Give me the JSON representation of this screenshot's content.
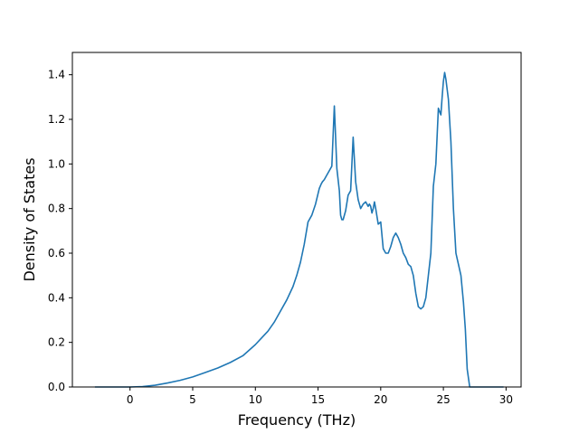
{
  "chart_data": {
    "type": "line",
    "title": "",
    "xlabel": "Frequency (THz)",
    "ylabel": "Density of States",
    "xlim": [
      -4.6,
      31.2
    ],
    "ylim": [
      0.0,
      1.5
    ],
    "xticks": [
      0,
      5,
      10,
      15,
      20,
      25,
      30
    ],
    "yticks": [
      0.0,
      0.2,
      0.4,
      0.6,
      0.8,
      1.0,
      1.2,
      1.4
    ],
    "grid": false,
    "legend": "none",
    "series": [
      {
        "color": "#1f77b4",
        "x": [
          -2.8,
          -1.0,
          0.0,
          1.0,
          2.0,
          3.0,
          4.0,
          5.0,
          6.0,
          7.0,
          8.0,
          9.0,
          10.0,
          10.5,
          11.0,
          11.5,
          12.0,
          12.5,
          13.0,
          13.3,
          13.6,
          13.9,
          14.2,
          14.5,
          14.8,
          15.1,
          15.25,
          15.35,
          15.5,
          15.7,
          15.9,
          16.1,
          16.3,
          16.5,
          16.7,
          16.8,
          16.9,
          17.0,
          17.2,
          17.4,
          17.6,
          17.8,
          18.0,
          18.2,
          18.4,
          18.6,
          18.8,
          19.0,
          19.1,
          19.2,
          19.3,
          19.4,
          19.5,
          19.6,
          19.8,
          20.0,
          20.2,
          20.4,
          20.6,
          20.8,
          21.0,
          21.2,
          21.4,
          21.6,
          21.8,
          22.0,
          22.2,
          22.4,
          22.6,
          22.8,
          23.0,
          23.2,
          23.4,
          23.6,
          23.8,
          24.0,
          24.2,
          24.4,
          24.6,
          24.8,
          24.9,
          25.0,
          25.1,
          25.2,
          25.4,
          25.6,
          25.8,
          26.0,
          26.2,
          26.4,
          26.6,
          26.75,
          26.9,
          27.1,
          27.5,
          28.5,
          29.8
        ],
        "y": [
          0.0,
          0.0,
          0.0,
          0.002,
          0.008,
          0.018,
          0.03,
          0.045,
          0.065,
          0.085,
          0.11,
          0.14,
          0.19,
          0.22,
          0.25,
          0.29,
          0.34,
          0.39,
          0.45,
          0.5,
          0.56,
          0.64,
          0.74,
          0.77,
          0.82,
          0.89,
          0.91,
          0.92,
          0.93,
          0.95,
          0.97,
          0.99,
          1.26,
          0.98,
          0.88,
          0.77,
          0.75,
          0.75,
          0.79,
          0.86,
          0.88,
          1.12,
          0.92,
          0.84,
          0.8,
          0.82,
          0.83,
          0.81,
          0.82,
          0.81,
          0.78,
          0.8,
          0.83,
          0.8,
          0.73,
          0.74,
          0.62,
          0.6,
          0.6,
          0.63,
          0.67,
          0.69,
          0.67,
          0.64,
          0.6,
          0.58,
          0.55,
          0.54,
          0.5,
          0.42,
          0.36,
          0.35,
          0.36,
          0.4,
          0.5,
          0.6,
          0.9,
          1.0,
          1.25,
          1.22,
          1.3,
          1.37,
          1.41,
          1.38,
          1.29,
          1.1,
          0.8,
          0.6,
          0.55,
          0.5,
          0.38,
          0.26,
          0.08,
          0.0,
          0.0,
          0.0,
          0.0
        ]
      }
    ]
  }
}
